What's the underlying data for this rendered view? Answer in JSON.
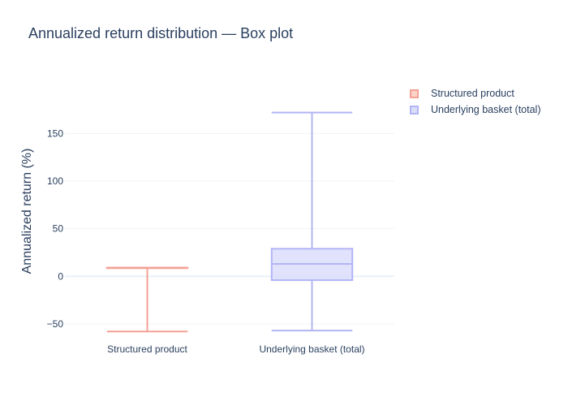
{
  "chart_data": {
    "type": "box",
    "title": "Annualized return distribution — Box plot",
    "xlabel": "",
    "ylabel": "Annualized return (%)",
    "ylim": [
      -68,
      205
    ],
    "yticks": [
      -50,
      0,
      50,
      100,
      150
    ],
    "ytick_labels": [
      "−50",
      "0",
      "50",
      "100",
      "150"
    ],
    "grid": true,
    "legend_position": "top-right",
    "categories": [
      "Structured product",
      "Underlying basket (total)"
    ],
    "series": [
      {
        "name": "Structured product",
        "category": "Structured product",
        "stats": {
          "min": -58,
          "q1": 9,
          "median": 9,
          "q3": 9,
          "max": 9
        },
        "line_color": "#f4a194",
        "fill_color": "#fcd2c9"
      },
      {
        "name": "Underlying basket (total)",
        "category": "Underlying basket (total)",
        "stats": {
          "min": -57,
          "q1": -4,
          "median": 13,
          "q3": 29,
          "max": 172
        },
        "line_color": "#b2b5f5",
        "fill_color": "#dcddfb"
      }
    ]
  }
}
